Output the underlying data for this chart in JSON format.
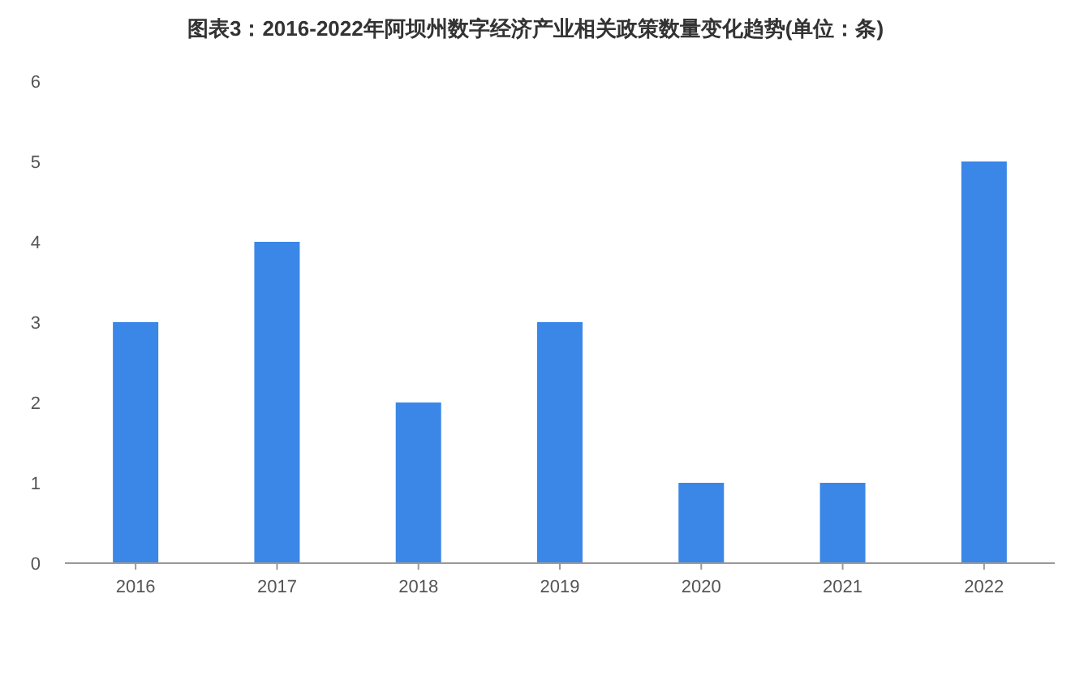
{
  "chart_data": {
    "type": "bar",
    "title": "图表3：2016-2022年阿坝州数字经济产业相关政策数量变化趋势(单位：条)",
    "categories": [
      "2016",
      "2017",
      "2018",
      "2019",
      "2020",
      "2021",
      "2022"
    ],
    "values": [
      3,
      4,
      2,
      3,
      1,
      1,
      5
    ],
    "color": "#3a87e8",
    "ylim": [
      0,
      6
    ],
    "yticks": [
      0,
      1,
      2,
      3,
      4,
      5,
      6
    ]
  }
}
